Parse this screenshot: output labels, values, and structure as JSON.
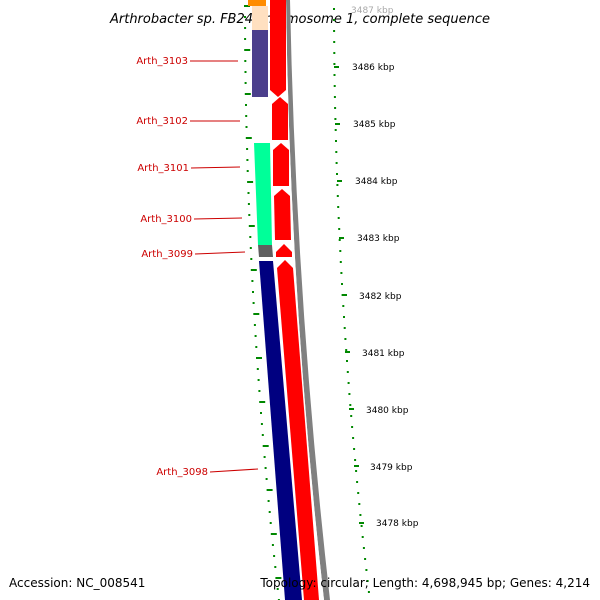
{
  "title": "Arthrobacter sp. FB24 chromosome 1, complete sequence",
  "footer": {
    "accession": "Accession: NC_008541",
    "topology": "Topology: circular; Length: 4,698,945 bp; Genes: 4,214"
  },
  "colors": {
    "forward_strand": "#ff0000",
    "backbone": "#808080",
    "gene_label": "#cc0000",
    "tick": "#008800"
  },
  "gene_labels": [
    "Arth_3103",
    "Arth_3102",
    "Arth_3101",
    "Arth_3100",
    "Arth_3099",
    "Arth_3098"
  ],
  "kbp_labels": [
    "3487 kbp",
    "3486 kbp",
    "3485 kbp",
    "3484 kbp",
    "3483 kbp",
    "3482 kbp",
    "3481 kbp",
    "3480 kbp",
    "3479 kbp",
    "3478 kbp"
  ]
}
